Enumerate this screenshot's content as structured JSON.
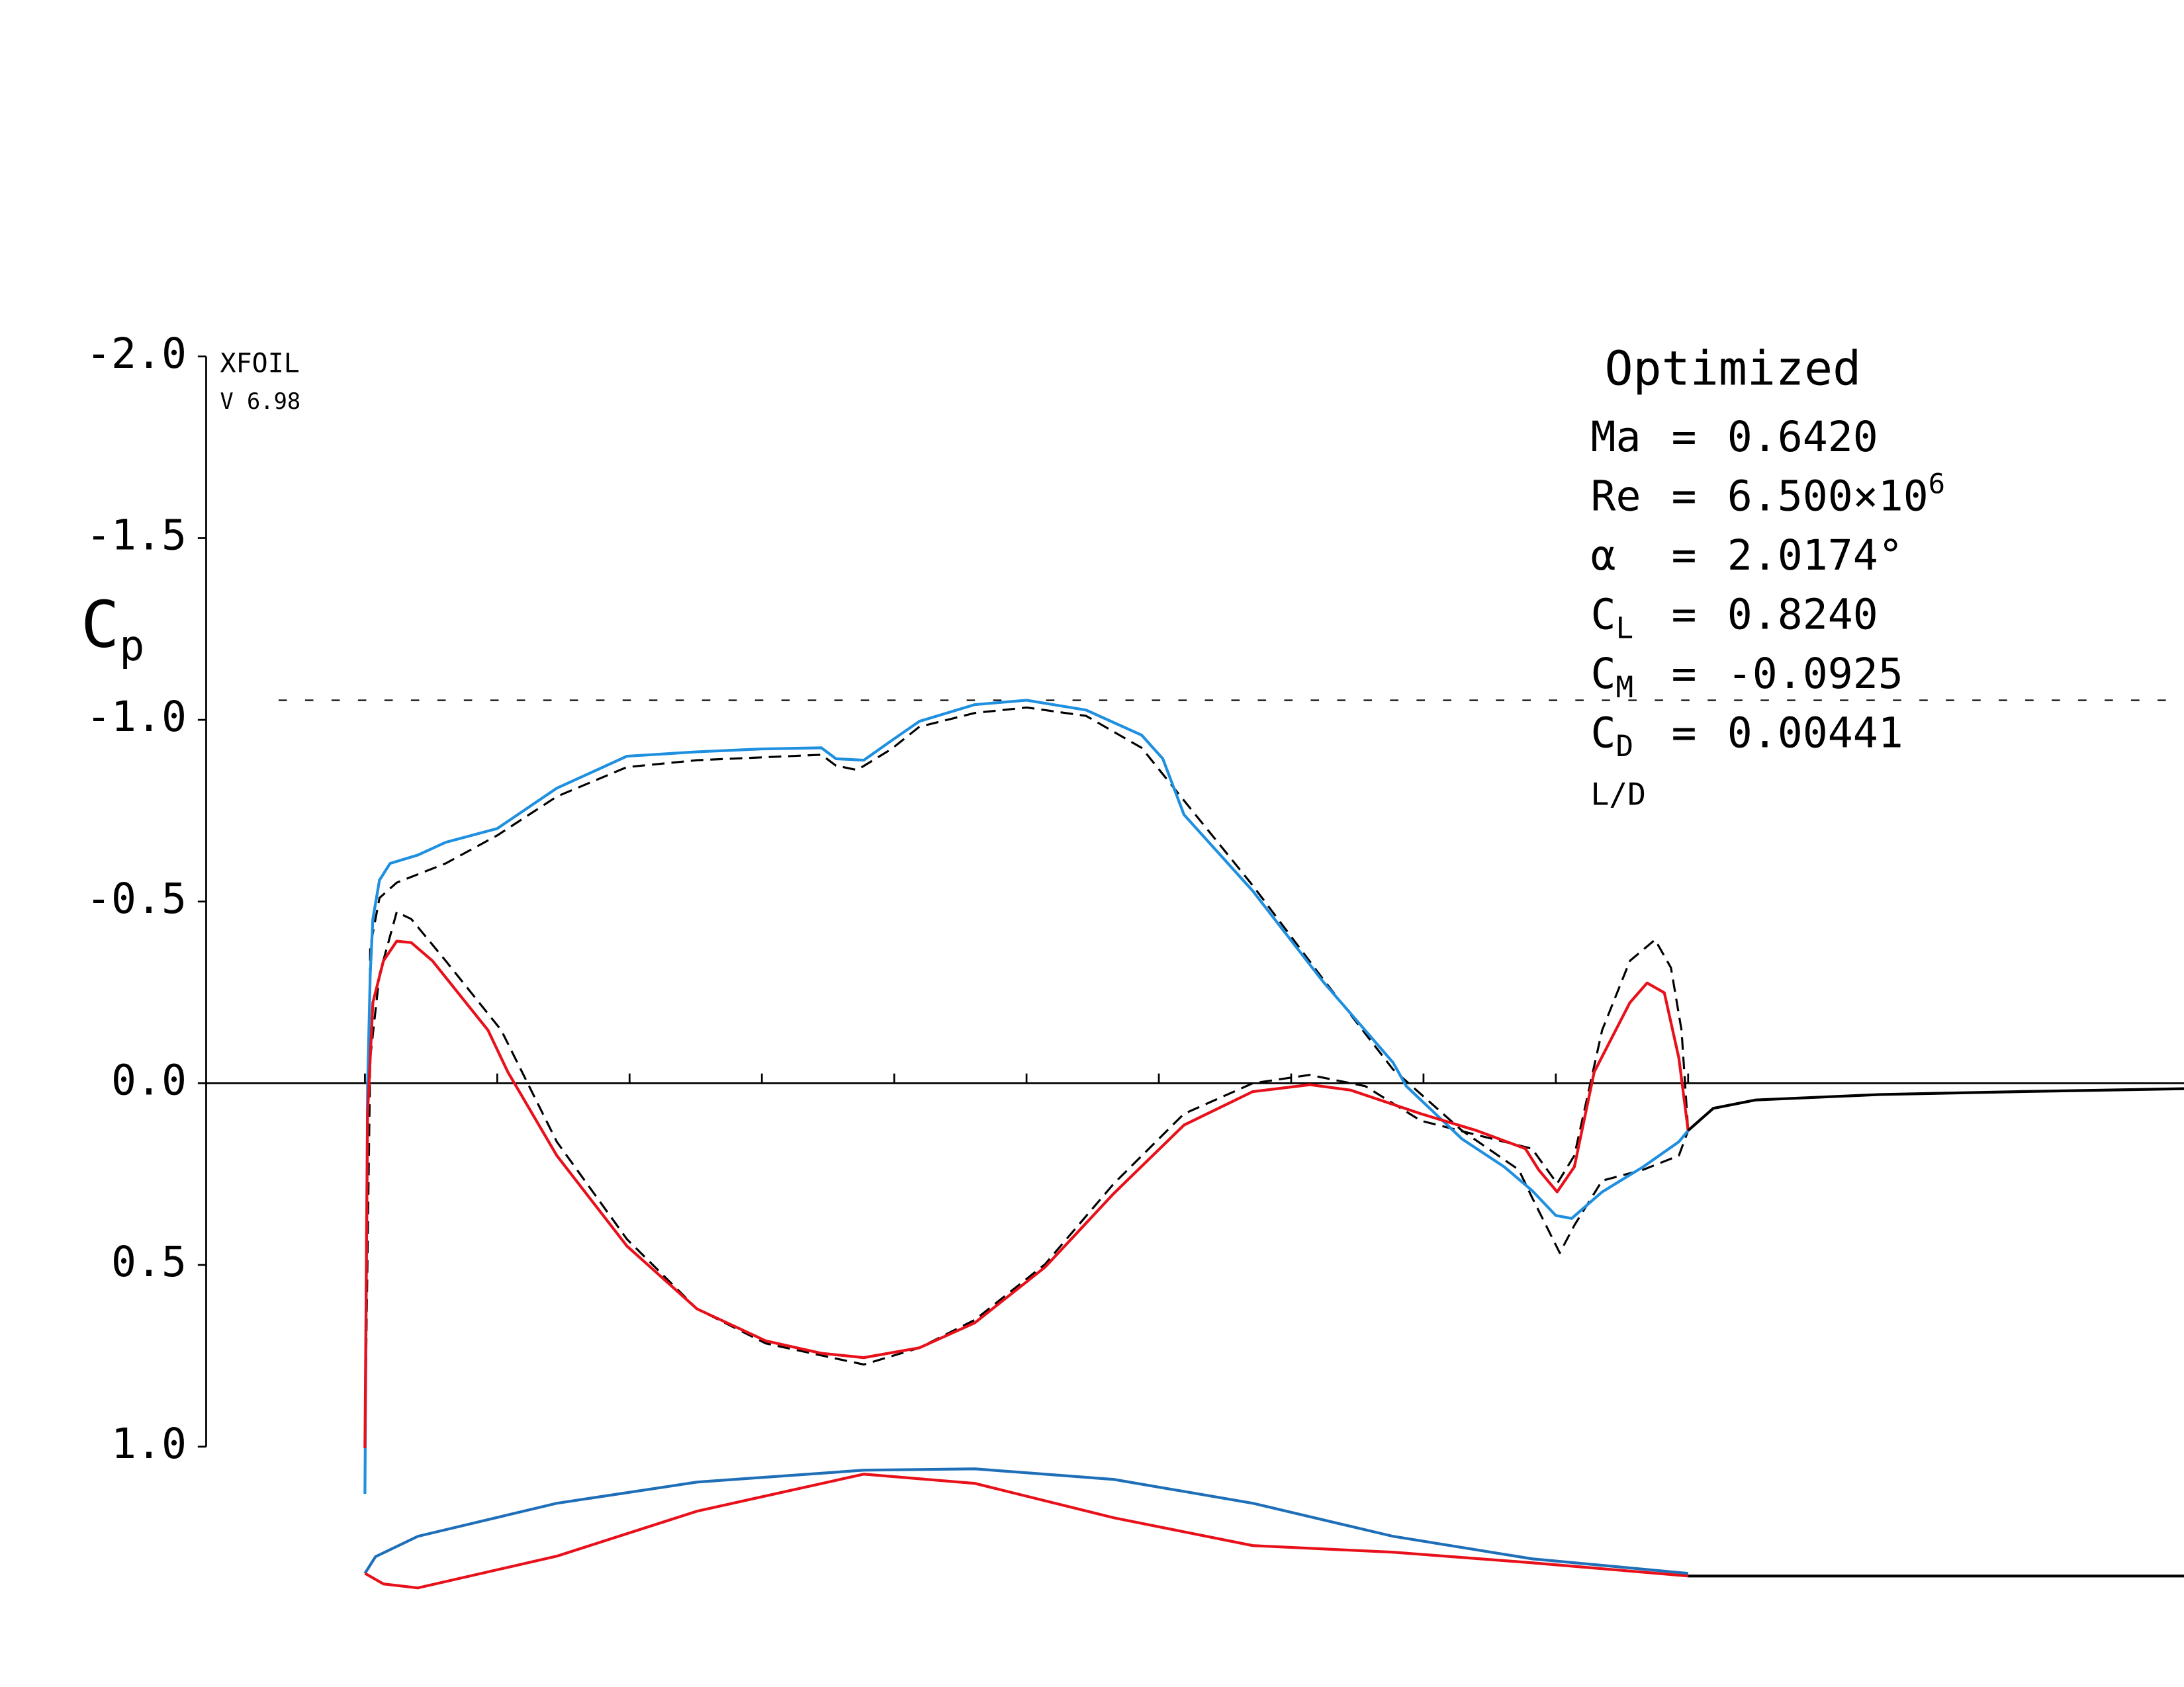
{
  "chart_data": {
    "type": "line",
    "program": "XFOIL",
    "version": "V 6.98",
    "case_title": "Optimized",
    "ylabel": "C",
    "ylabel_sub": "p",
    "separator": "=",
    "params": [
      {
        "symbol": "Ma",
        "value": "0.6420"
      },
      {
        "symbol": "Re",
        "value": "6.500×10",
        "sup": "6"
      },
      {
        "symbol": "α",
        "value": "2.0174°"
      },
      {
        "symbol": "C",
        "sub": "L",
        "value": "0.8240"
      },
      {
        "symbol": "C",
        "sub": "M",
        "value": "-0.0925"
      },
      {
        "symbol": "C",
        "sub": "D",
        "value": "0.00441"
      }
    ],
    "footer": "L/D",
    "xlim": [
      -0.12,
      1.375
    ],
    "ylim": [
      1,
      -2
    ],
    "xticks": [
      0,
      0.1,
      0.2,
      0.3,
      0.4,
      0.5,
      0.6,
      0.7,
      0.8,
      0.9,
      1.0
    ],
    "yticks": [
      {
        "value": -2,
        "label": "-2.0"
      },
      {
        "value": -1.5,
        "label": "-1.5"
      },
      {
        "value": -1,
        "label": "-1.0"
      },
      {
        "value": -0.5,
        "label": "-0.5"
      },
      {
        "value": 0,
        "label": "0.0"
      },
      {
        "value": 0.5,
        "label": "0.5"
      },
      {
        "value": 1,
        "label": "1.0"
      }
    ],
    "critical_cp": -1.054,
    "series": [
      {
        "color": "#000000",
        "style": "dashed",
        "x": [
          0,
          0.004,
          0.011,
          0.024,
          0.061,
          0.1,
          0.145,
          0.198,
          0.251,
          0.345,
          0.356,
          0.372,
          0.398,
          0.419,
          0.461,
          0.5,
          0.545,
          0.587,
          0.619,
          0.671,
          0.724,
          0.777,
          0.829,
          0.872,
          0.882,
          0.903,
          0.914,
          0.935,
          0.966,
          0.993,
          1.0
        ],
        "values": [
          1.004,
          -0.375,
          -0.51,
          -0.552,
          -0.605,
          -0.682,
          -0.789,
          -0.87,
          -0.889,
          -0.904,
          -0.874,
          -0.862,
          -0.92,
          -0.981,
          -1.019,
          -1.034,
          -1.011,
          -0.923,
          -0.778,
          -0.544,
          -0.287,
          -0.038,
          0.13,
          0.238,
          0.314,
          0.467,
          0.391,
          0.268,
          0.238,
          0.199,
          0.13
        ]
      },
      {
        "color": "#000000",
        "style": "dashed",
        "x": [
          0,
          0.004,
          0.011,
          0.024,
          0.035,
          0.061,
          0.103,
          0.145,
          0.198,
          0.251,
          0.303,
          0.377,
          0.419,
          0.461,
          0.514,
          0.566,
          0.619,
          0.671,
          0.714,
          0.756,
          0.798,
          0.84,
          0.882,
          0.901,
          0.914,
          0.935,
          0.956,
          0.975,
          0.987,
          0.995,
          1.0
        ],
        "values": [
          1.004,
          -0.069,
          -0.299,
          -0.471,
          -0.452,
          -0.337,
          -0.146,
          0.161,
          0.429,
          0.621,
          0.716,
          0.774,
          0.728,
          0.651,
          0.498,
          0.276,
          0.084,
          0,
          -0.023,
          0.008,
          0.103,
          0.142,
          0.18,
          0.276,
          0.199,
          -0.146,
          -0.337,
          -0.395,
          -0.318,
          -0.146,
          0.13
        ]
      },
      {
        "color": "#1f8fe0",
        "style": "solid",
        "x": [
          0,
          0.002,
          0.004,
          0.006,
          0.011,
          0.019,
          0.04,
          0.061,
          0.1,
          0.145,
          0.198,
          0.251,
          0.3,
          0.345,
          0.356,
          0.377,
          0.398,
          0.419,
          0.461,
          0.5,
          0.545,
          0.587,
          0.603,
          0.619,
          0.671,
          0.724,
          0.777,
          0.787,
          0.829,
          0.861,
          0.882,
          0.9,
          0.912,
          0.935,
          0.966,
          0.993,
          1.0
        ],
        "values": [
          1.13,
          0.008,
          -0.299,
          -0.452,
          -0.559,
          -0.605,
          -0.628,
          -0.663,
          -0.701,
          -0.812,
          -0.9,
          -0.912,
          -0.92,
          -0.923,
          -0.893,
          -0.889,
          -0.943,
          -0.996,
          -1.042,
          -1.054,
          -1.027,
          -0.958,
          -0.893,
          -0.739,
          -0.529,
          -0.28,
          -0.057,
          0.008,
          0.153,
          0.23,
          0.295,
          0.364,
          0.372,
          0.299,
          0.23,
          0.161,
          0.13
        ]
      },
      {
        "color": "#e8101a",
        "style": "solid",
        "x": [
          0,
          0.002,
          0.006,
          0.014,
          0.024,
          0.035,
          0.051,
          0.093,
          0.108,
          0.145,
          0.198,
          0.251,
          0.303,
          0.345,
          0.377,
          0.419,
          0.461,
          0.514,
          0.566,
          0.619,
          0.671,
          0.714,
          0.745,
          0.798,
          0.84,
          0.877,
          0.887,
          0.901,
          0.914,
          0.929,
          0.956,
          0.969,
          0.982,
          0.993,
          1.0
        ],
        "values": [
          1.004,
          0.084,
          -0.222,
          -0.337,
          -0.391,
          -0.387,
          -0.337,
          -0.146,
          -0.031,
          0.199,
          0.448,
          0.621,
          0.709,
          0.743,
          0.755,
          0.728,
          0.659,
          0.506,
          0.303,
          0.115,
          0.023,
          0.004,
          0.019,
          0.084,
          0.13,
          0.18,
          0.238,
          0.299,
          0.23,
          -0.031,
          -0.222,
          -0.276,
          -0.249,
          -0.069,
          0.13
        ]
      },
      {
        "color": "#000000",
        "style": "solid",
        "x": [
          1.0,
          1.019,
          1.051,
          1.145,
          1.251,
          1.375
        ],
        "values": [
          0.13,
          0.069,
          0.046,
          0.031,
          0.023,
          0.015
        ]
      }
    ],
    "airfoil": [
      {
        "color": "#1f6fb8",
        "x": [
          0,
          0.008,
          0.04,
          0.145,
          0.251,
          0.377,
          0.461,
          0.566,
          0.671,
          0.777,
          0.882,
          1.0
        ],
        "y": [
          0,
          0.0126,
          0.028,
          0.053,
          0.069,
          0.078,
          0.079,
          0.071,
          0.053,
          0.028,
          0.011,
          0
        ]
      },
      {
        "color": "#e8101a",
        "x": [
          0,
          0.014,
          0.04,
          0.145,
          0.251,
          0.377,
          0.461,
          0.566,
          0.671,
          0.777,
          0.882,
          1.0
        ],
        "y": [
          0,
          -0.008,
          -0.011,
          0.013,
          0.047,
          0.075,
          0.068,
          0.042,
          0.021,
          0.016,
          0.008,
          -0.002
        ]
      },
      {
        "color": "#000000",
        "x": [
          1.0,
          1.375
        ],
        "y": [
          -0.002,
          -0.002
        ]
      }
    ]
  }
}
